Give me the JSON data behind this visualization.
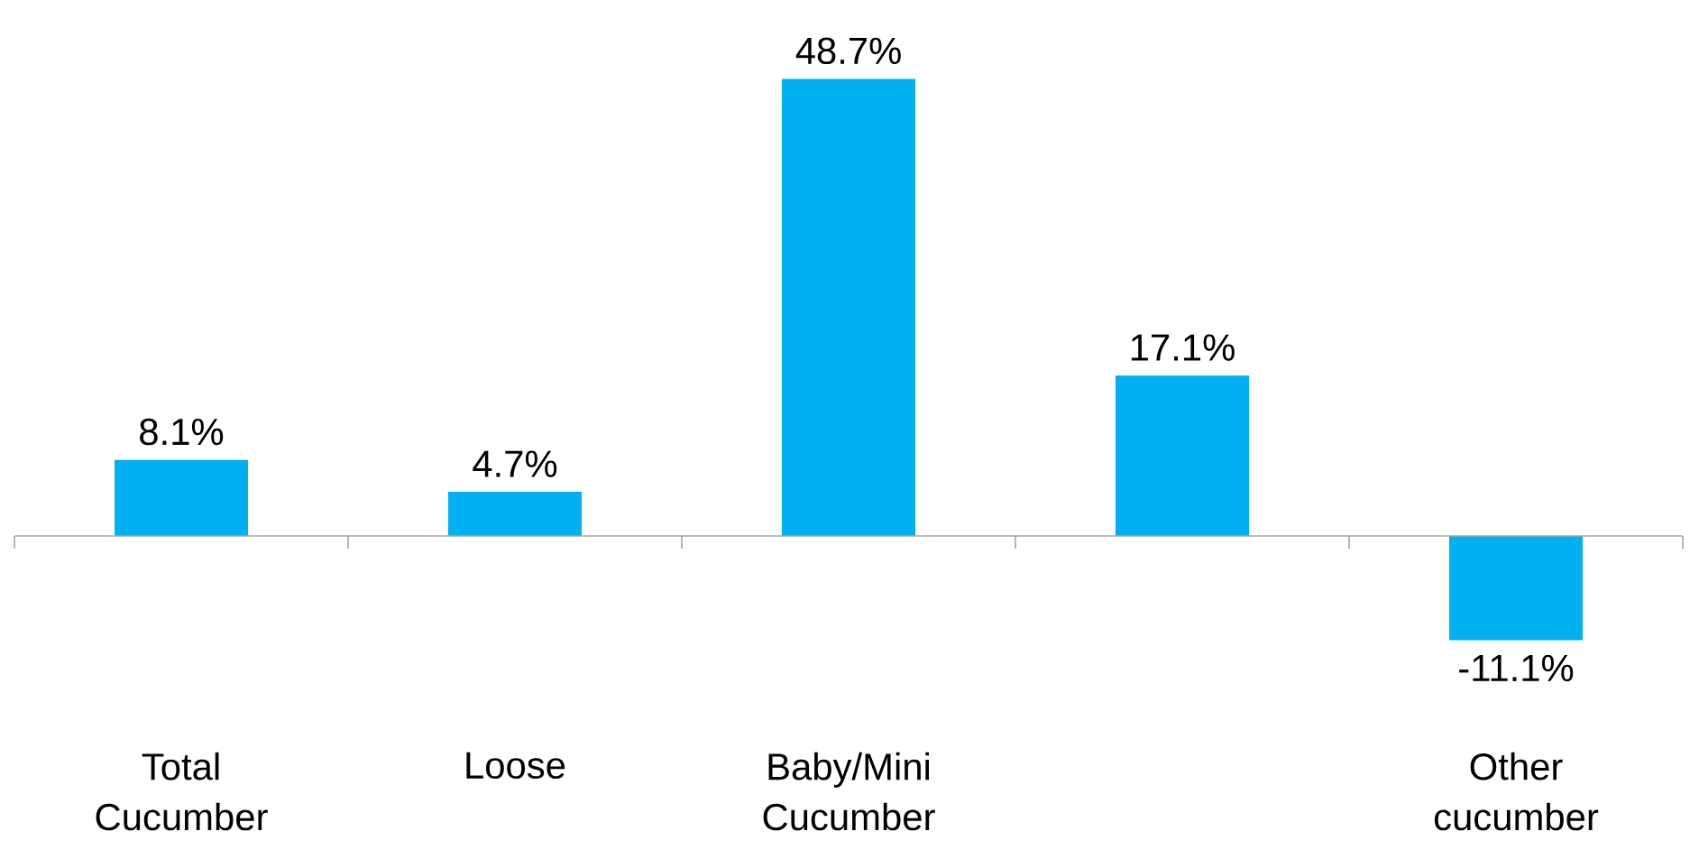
{
  "chart_data": {
    "type": "bar",
    "categories": [
      "Total Cucumber",
      "Loose",
      "Baby/Mini Cucumber",
      null,
      "Other cucumber"
    ],
    "values": [
      8.1,
      4.7,
      48.7,
      17.1,
      -11.1
    ],
    "value_labels": [
      "8.1%",
      "4.7%",
      "48.7%",
      "17.1%",
      "-11.1%"
    ],
    "color": "#00b0f0"
  }
}
